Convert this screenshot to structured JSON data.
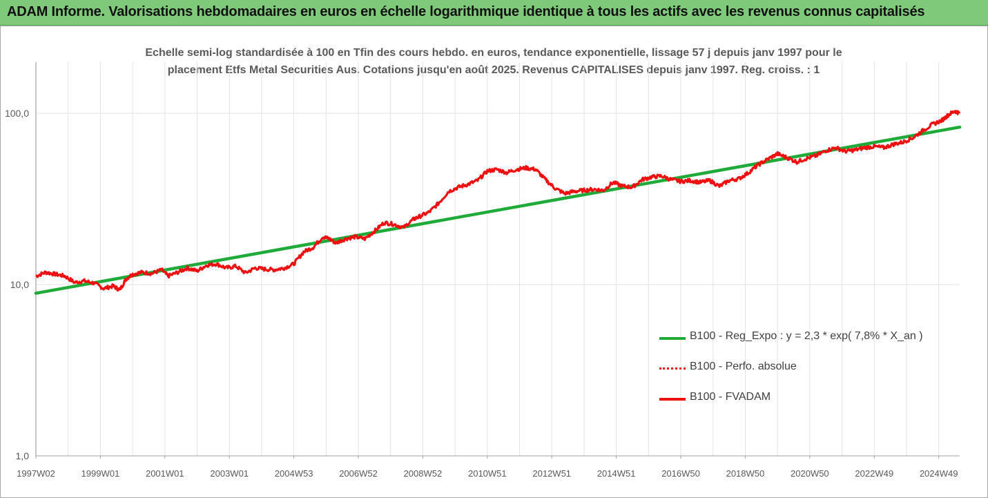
{
  "header": {
    "title": "ADAM Informe. Valorisations hebdomadaires en euros en échelle logarithmique identique à tous les actifs avec les revenus connus capitalisés"
  },
  "colors": {
    "header_bg": "#7fc97a",
    "accent_corner": "#f2b400",
    "reg_expo": "#1faa3a",
    "fvadam": "#ee1111",
    "perfo": "#ee1111",
    "grid": "#e3e3e3",
    "axis_text": "#595959"
  },
  "chart_data": {
    "type": "line",
    "subtitle_line1": "Echelle semi-log standardisée à 100 en Tfin des cours hebdo. en euros, tendance exponentielle, lissage 57 j depuis janv 1997 pour le",
    "subtitle_line2": "placement Etfs Metal Securities Aus. Cotations jusqu'en août 2025. Revenus CAPITALISES depuis janv 1997. Reg. croiss. : 1",
    "y_scale": "log",
    "ylim": [
      1,
      200
    ],
    "y_ticks": [
      {
        "value": 1,
        "label": "1,0"
      },
      {
        "value": 10,
        "label": "10,0"
      },
      {
        "value": 100,
        "label": "100,0"
      }
    ],
    "xlim": [
      1997.0,
      2025.65
    ],
    "x_ticks": [
      {
        "x": 1997.0,
        "label": "1997W02"
      },
      {
        "x": 1999.0,
        "label": "1999W01"
      },
      {
        "x": 2001.0,
        "label": "2001W01"
      },
      {
        "x": 2003.0,
        "label": "2003W01"
      },
      {
        "x": 2005.0,
        "label": "2004W53"
      },
      {
        "x": 2007.0,
        "label": "2006W52"
      },
      {
        "x": 2009.0,
        "label": "2008W52"
      },
      {
        "x": 2011.0,
        "label": "2010W51"
      },
      {
        "x": 2013.0,
        "label": "2012W51"
      },
      {
        "x": 2015.0,
        "label": "2014W51"
      },
      {
        "x": 2017.0,
        "label": "2016W50"
      },
      {
        "x": 2019.0,
        "label": "2018W50"
      },
      {
        "x": 2021.0,
        "label": "2020W50"
      },
      {
        "x": 2023.0,
        "label": "2022W49"
      },
      {
        "x": 2025.0,
        "label": "2024W49"
      }
    ],
    "grid": true,
    "legend_position": "right-middle",
    "series": [
      {
        "name": "B100 - Reg_Expo : y = 2,3 * exp( 7,8% *  X_an )",
        "style": "solid",
        "x": [
          1997.0,
          2025.65
        ],
        "y": [
          8.9,
          83
        ]
      },
      {
        "name": "B100 - Perfo. absolue",
        "style": "dotted",
        "x": [],
        "y": []
      },
      {
        "name": "B100 - FVADAM",
        "style": "solid",
        "x": [
          1997.0,
          1997.3,
          1997.6,
          1997.9,
          1998.2,
          1998.5,
          1998.8,
          1999.1,
          1999.4,
          1999.6,
          1999.8,
          2000.0,
          2000.3,
          2000.6,
          2000.9,
          2001.1,
          2001.4,
          2001.7,
          2002.0,
          2002.3,
          2002.6,
          2002.9,
          2003.2,
          2003.5,
          2003.8,
          2004.1,
          2004.4,
          2004.7,
          2005.0,
          2005.3,
          2005.6,
          2005.9,
          2006.1,
          2006.3,
          2006.6,
          2006.9,
          2007.2,
          2007.5,
          2007.8,
          2008.1,
          2008.4,
          2008.7,
          2008.9,
          2009.2,
          2009.5,
          2009.8,
          2010.1,
          2010.4,
          2010.7,
          2011.0,
          2011.3,
          2011.6,
          2011.9,
          2012.2,
          2012.5,
          2012.8,
          2013.1,
          2013.4,
          2013.7,
          2014.0,
          2014.3,
          2014.6,
          2014.9,
          2015.2,
          2015.5,
          2015.8,
          2016.1,
          2016.4,
          2016.7,
          2017.0,
          2017.3,
          2017.6,
          2017.9,
          2018.2,
          2018.5,
          2018.8,
          2019.1,
          2019.4,
          2019.7,
          2020.0,
          2020.3,
          2020.6,
          2020.9,
          2021.2,
          2021.5,
          2021.8,
          2022.1,
          2022.4,
          2022.7,
          2023.0,
          2023.3,
          2023.6,
          2023.9,
          2024.2,
          2024.5,
          2024.8,
          2025.1,
          2025.3,
          2025.5,
          2025.65
        ],
        "y": [
          11.2,
          11.8,
          11.5,
          11.2,
          10.3,
          10.5,
          10.2,
          9.5,
          9.8,
          9.3,
          10.8,
          11.5,
          11.8,
          11.6,
          12.2,
          11.2,
          11.8,
          12.5,
          12.0,
          13.0,
          13.2,
          12.5,
          12.8,
          11.7,
          12.5,
          12.3,
          12.2,
          12.5,
          13.2,
          15.5,
          16.5,
          19.0,
          18.5,
          17.5,
          18.5,
          19.0,
          18.5,
          20.5,
          23.0,
          22.5,
          21.5,
          24.0,
          25.0,
          26.5,
          30.0,
          35.0,
          37.0,
          38.5,
          40.5,
          46.0,
          47.0,
          45.0,
          47.0,
          48.0,
          47.0,
          41.0,
          36.5,
          34.0,
          35.0,
          35.5,
          36.0,
          35.5,
          39.5,
          37.5,
          37.0,
          41.0,
          42.5,
          43.0,
          41.0,
          40.0,
          40.5,
          39.5,
          40.5,
          37.5,
          40.5,
          41.5,
          45.0,
          50.0,
          54.0,
          58.0,
          55.0,
          52.0,
          54.5,
          56.5,
          60.5,
          63.0,
          60.0,
          61.0,
          63.0,
          64.0,
          63.0,
          66.0,
          68.0,
          72.0,
          79.0,
          86.0,
          91.0,
          98.0,
          103.0,
          100.0
        ]
      }
    ]
  }
}
